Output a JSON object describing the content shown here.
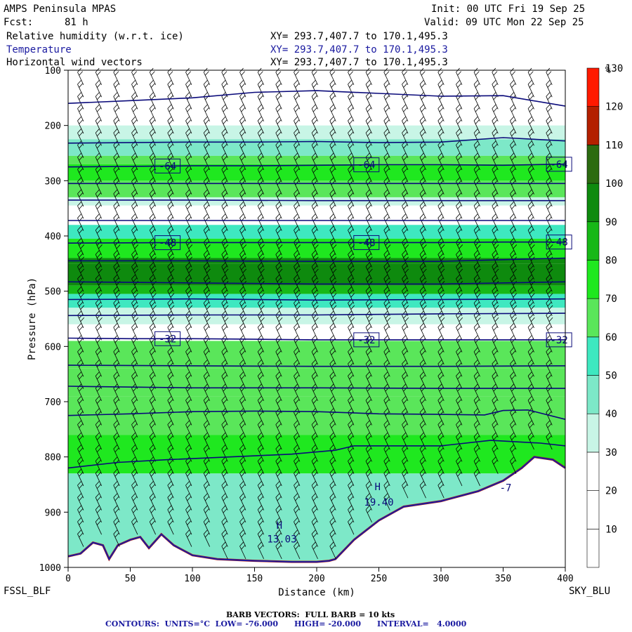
{
  "header": {
    "model": "AMPS Peninsula MPAS",
    "fcst_label": "Fcst:",
    "fcst_value": "81 h",
    "init": "Init: 00 UTC Fri 19 Sep 25",
    "valid": "Valid: 09 UTC Mon 22 Sep 25",
    "fields": [
      {
        "name": "Relative humidity (w.r.t. ice)",
        "xy": "XY= 293.7,407.7 to 170.1,495.3"
      },
      {
        "name": "Temperature",
        "xy": "XY= 293.7,407.7 to 170.1,495.3"
      },
      {
        "name": "Horizontal wind vectors",
        "xy": "XY= 293.7,407.7 to 170.1,495.3"
      }
    ]
  },
  "footer": {
    "left_station": "FSSL_BLF",
    "right_station": "SKY_BLU",
    "barb_note": "BARB VECTORS:  FULL BARB = 10 kts",
    "contour_note": "CONTOURS:  UNITS=°C  LOW= -76.000      HIGH= -20.000      INTERVAL=   4.0000"
  },
  "colors": {
    "contour": "#0a0a7a",
    "terrain": "#1a1aa0",
    "bands": [
      "#ffffff",
      "#ffffff",
      "#ffffff",
      "#c8f5e6",
      "#7de8c8",
      "#3ee8c0",
      "#5ae65a",
      "#1fe81f",
      "#17b817",
      "#0e8a0e",
      "#2c6b10",
      "#b32000",
      "#ff1a00"
    ]
  },
  "chart_data": {
    "type": "heatmap",
    "xlabel": "Distance (km)",
    "ylabel": "Pressure (hPa)",
    "xlim": [
      0,
      400
    ],
    "ylim": [
      1000,
      100
    ],
    "y_scale": "reversed",
    "x_ticks": [
      "0",
      "50",
      "100",
      "150",
      "200",
      "250",
      "300",
      "350",
      "400"
    ],
    "y_ticks": [
      "100",
      "200",
      "300",
      "400",
      "500",
      "600",
      "700",
      "800",
      "900",
      "1000"
    ],
    "colorbar": {
      "unit": "%",
      "ticks": [
        "10",
        "20",
        "30",
        "40",
        "50",
        "60",
        "70",
        "80",
        "90",
        "100",
        "110",
        "120",
        "130"
      ],
      "levels": [
        0,
        10,
        20,
        30,
        40,
        50,
        60,
        70,
        80,
        90,
        100,
        110,
        120,
        130
      ]
    },
    "rh_layers": [
      {
        "p_top": 100,
        "p_bot": 180,
        "rh": 5
      },
      {
        "p_top": 180,
        "p_bot": 200,
        "rh": 25
      },
      {
        "p_top": 200,
        "p_bot": 225,
        "rh": 35
      },
      {
        "p_top": 225,
        "p_bot": 255,
        "rh": 45
      },
      {
        "p_top": 255,
        "p_bot": 270,
        "rh": 60
      },
      {
        "p_top": 270,
        "p_bot": 300,
        "rh": 75
      },
      {
        "p_top": 300,
        "p_bot": 330,
        "rh": 62
      },
      {
        "p_top": 330,
        "p_bot": 345,
        "rh": 35
      },
      {
        "p_top": 345,
        "p_bot": 380,
        "rh": 15
      },
      {
        "p_top": 380,
        "p_bot": 405,
        "rh": 55
      },
      {
        "p_top": 405,
        "p_bot": 440,
        "rh": 78
      },
      {
        "p_top": 440,
        "p_bot": 450,
        "rh": 90
      },
      {
        "p_top": 450,
        "p_bot": 490,
        "rh": 97
      },
      {
        "p_top": 490,
        "p_bot": 505,
        "rh": 85
      },
      {
        "p_top": 505,
        "p_bot": 530,
        "rh": 55
      },
      {
        "p_top": 530,
        "p_bot": 560,
        "rh": 38
      },
      {
        "p_top": 560,
        "p_bot": 590,
        "rh": 25
      },
      {
        "p_top": 590,
        "p_bot": 640,
        "rh": 62
      },
      {
        "p_top": 640,
        "p_bot": 690,
        "rh": 65
      },
      {
        "p_top": 690,
        "p_bot": 760,
        "rh": 62
      },
      {
        "p_top": 760,
        "p_bot": 830,
        "rh": 72
      },
      {
        "p_top": 830,
        "p_bot": 1000,
        "rh": 45
      }
    ],
    "temperature_contours": [
      {
        "label": "",
        "points": [
          [
            0,
            160
          ],
          [
            50,
            155
          ],
          [
            100,
            150
          ],
          [
            150,
            140
          ],
          [
            200,
            137
          ],
          [
            250,
            142
          ],
          [
            300,
            147
          ],
          [
            350,
            146
          ],
          [
            400,
            165
          ]
        ]
      },
      {
        "label": "",
        "points": [
          [
            0,
            232
          ],
          [
            50,
            231
          ],
          [
            100,
            230
          ],
          [
            150,
            230
          ],
          [
            200,
            229
          ],
          [
            250,
            231
          ],
          [
            300,
            230
          ],
          [
            350,
            222
          ],
          [
            400,
            228
          ]
        ]
      },
      {
        "label": "-64",
        "points": [
          [
            0,
            275
          ],
          [
            50,
            274
          ],
          [
            100,
            273
          ],
          [
            150,
            273
          ],
          [
            200,
            272
          ],
          [
            250,
            271
          ],
          [
            300,
            271
          ],
          [
            350,
            272
          ],
          [
            400,
            270
          ]
        ]
      },
      {
        "label": "",
        "points": [
          [
            0,
            305
          ],
          [
            100,
            305
          ],
          [
            200,
            305
          ],
          [
            300,
            305
          ],
          [
            400,
            305
          ]
        ]
      },
      {
        "label": "",
        "points": [
          [
            0,
            335
          ],
          [
            100,
            335
          ],
          [
            200,
            336
          ],
          [
            300,
            336
          ],
          [
            400,
            336
          ]
        ]
      },
      {
        "label": "",
        "points": [
          [
            0,
            372
          ],
          [
            100,
            372
          ],
          [
            200,
            372
          ],
          [
            300,
            372
          ],
          [
            400,
            372
          ]
        ]
      },
      {
        "label": "-48",
        "points": [
          [
            0,
            413
          ],
          [
            100,
            412
          ],
          [
            200,
            412
          ],
          [
            300,
            412
          ],
          [
            350,
            411
          ],
          [
            400,
            411
          ]
        ]
      },
      {
        "label": "",
        "points": [
          [
            0,
            445
          ],
          [
            100,
            445
          ],
          [
            200,
            446
          ],
          [
            300,
            446
          ],
          [
            350,
            443
          ],
          [
            400,
            440
          ]
        ]
      },
      {
        "label": "",
        "points": [
          [
            0,
            483
          ],
          [
            100,
            485
          ],
          [
            200,
            487
          ],
          [
            300,
            487
          ],
          [
            350,
            485
          ],
          [
            400,
            483
          ]
        ]
      },
      {
        "label": "",
        "points": [
          [
            0,
            515
          ],
          [
            100,
            514
          ],
          [
            200,
            516
          ],
          [
            300,
            515
          ],
          [
            400,
            514
          ]
        ]
      },
      {
        "label": "",
        "points": [
          [
            0,
            544
          ],
          [
            100,
            543
          ],
          [
            200,
            543
          ],
          [
            300,
            541
          ],
          [
            400,
            540
          ]
        ]
      },
      {
        "label": "-32",
        "points": [
          [
            0,
            585
          ],
          [
            50,
            586
          ],
          [
            100,
            586
          ],
          [
            150,
            587
          ],
          [
            200,
            588
          ],
          [
            250,
            588
          ],
          [
            300,
            588
          ],
          [
            350,
            588
          ],
          [
            400,
            588
          ]
        ]
      },
      {
        "label": "",
        "points": [
          [
            0,
            634
          ],
          [
            100,
            635
          ],
          [
            200,
            636
          ],
          [
            300,
            636
          ],
          [
            400,
            635
          ]
        ]
      },
      {
        "label": "",
        "points": [
          [
            0,
            672
          ],
          [
            100,
            675
          ],
          [
            200,
            675
          ],
          [
            300,
            676
          ],
          [
            400,
            676
          ]
        ]
      },
      {
        "label": "",
        "points": [
          [
            0,
            725
          ],
          [
            50,
            722
          ],
          [
            100,
            718
          ],
          [
            150,
            717
          ],
          [
            200,
            718
          ],
          [
            250,
            722
          ],
          [
            300,
            723
          ],
          [
            335,
            724
          ],
          [
            350,
            716
          ],
          [
            370,
            715
          ],
          [
            400,
            732
          ]
        ]
      },
      {
        "label": "",
        "points": [
          [
            0,
            820
          ],
          [
            40,
            810
          ],
          [
            80,
            805
          ],
          [
            130,
            800
          ],
          [
            180,
            795
          ],
          [
            215,
            788
          ],
          [
            230,
            780
          ],
          [
            260,
            780
          ],
          [
            300,
            780
          ],
          [
            340,
            770
          ],
          [
            380,
            775
          ],
          [
            400,
            780
          ]
        ]
      }
    ],
    "terrain_hpa": [
      [
        0,
        980
      ],
      [
        10,
        975
      ],
      [
        20,
        955
      ],
      [
        28,
        960
      ],
      [
        33,
        985
      ],
      [
        40,
        960
      ],
      [
        50,
        950
      ],
      [
        58,
        945
      ],
      [
        65,
        965
      ],
      [
        75,
        940
      ],
      [
        85,
        960
      ],
      [
        100,
        978
      ],
      [
        120,
        985
      ],
      [
        150,
        988
      ],
      [
        180,
        990
      ],
      [
        200,
        990
      ],
      [
        210,
        988
      ],
      [
        215,
        985
      ],
      [
        230,
        950
      ],
      [
        250,
        915
      ],
      [
        270,
        890
      ],
      [
        300,
        880
      ],
      [
        330,
        862
      ],
      [
        350,
        843
      ],
      [
        365,
        820
      ],
      [
        375,
        800
      ],
      [
        390,
        805
      ],
      [
        400,
        820
      ]
    ],
    "annotations": [
      {
        "label": "H",
        "x_km": 249,
        "p_hpa": 860
      },
      {
        "label": "19.40",
        "x_km": 250,
        "p_hpa": 888
      },
      {
        "label": "H",
        "x_km": 170,
        "p_hpa": 930
      },
      {
        "label": "13.03",
        "x_km": 172,
        "p_hpa": 955
      },
      {
        "label": "-7",
        "x_km": 352,
        "p_hpa": 862
      }
    ]
  }
}
